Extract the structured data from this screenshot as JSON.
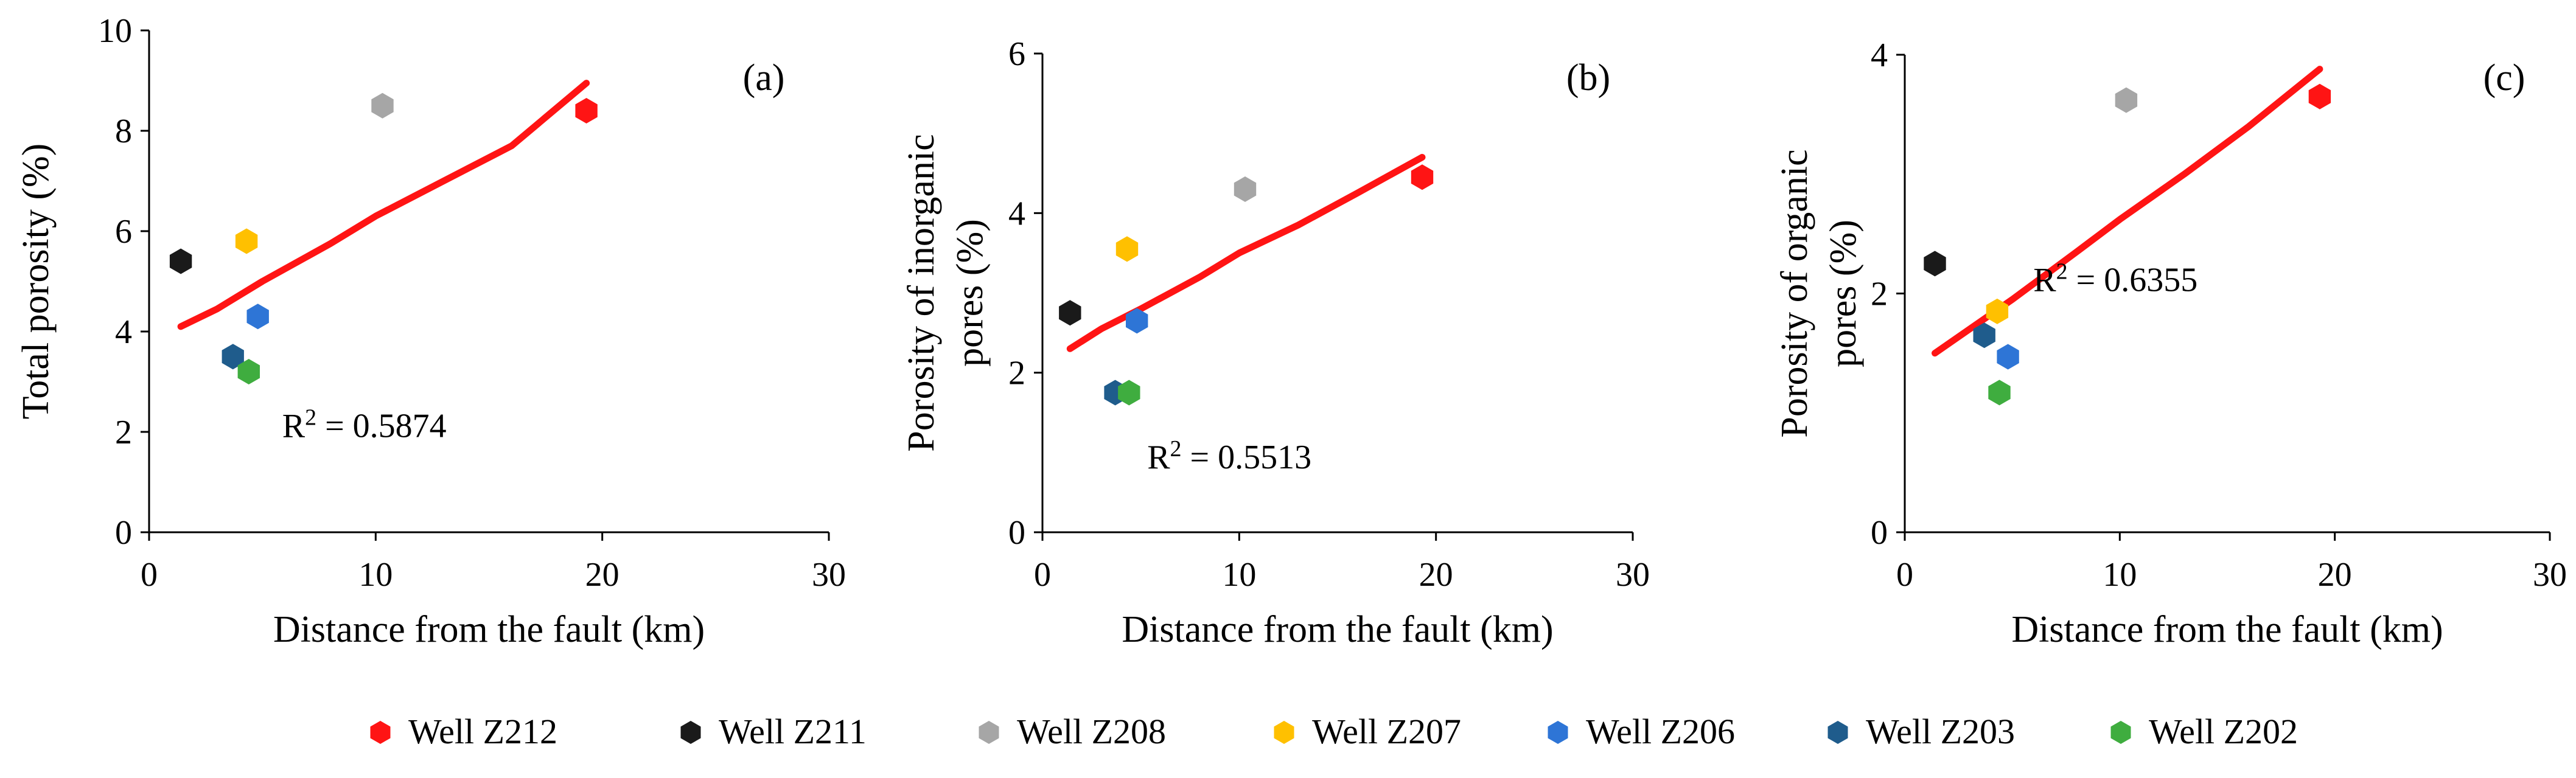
{
  "figure": {
    "x_title": "Distance from the fault (km)"
  },
  "colors": {
    "trend": "#ff1414",
    "Z212": "#ff1414",
    "Z211": "#1a1a1a",
    "Z208": "#a6a6a6",
    "Z207": "#ffc000",
    "Z206": "#2e75d6",
    "Z203": "#1f5c8c",
    "Z202": "#3fad3f"
  },
  "legend": [
    {
      "key": "Z212",
      "label": "Well Z212"
    },
    {
      "key": "Z211",
      "label": "Well Z211"
    },
    {
      "key": "Z208",
      "label": "Well Z208"
    },
    {
      "key": "Z207",
      "label": "Well Z207"
    },
    {
      "key": "Z206",
      "label": "Well Z206"
    },
    {
      "key": "Z203",
      "label": "Well Z203"
    },
    {
      "key": "Z202",
      "label": "Well Z202"
    }
  ],
  "chart_data": [
    {
      "type": "scatter",
      "panel": "(a)",
      "ylabel": "Total porosity (%)",
      "ylabel_lines": [
        "Total porosity (%)"
      ],
      "xlabel": "Distance from the fault (km)",
      "xlim": [
        0,
        30
      ],
      "ylim": [
        0,
        10
      ],
      "x_ticks": [
        0,
        10,
        20,
        30
      ],
      "y_ticks": [
        0,
        2,
        4,
        6,
        8,
        10
      ],
      "r2_prefix": "R",
      "r2_sup": "2",
      "r2_value": " = 0.5874",
      "r2_pos": [
        9.5,
        1.9
      ],
      "points": [
        {
          "well": "Z212",
          "x": 19.3,
          "y": 8.4
        },
        {
          "well": "Z211",
          "x": 1.4,
          "y": 5.4
        },
        {
          "well": "Z208",
          "x": 10.3,
          "y": 8.5
        },
        {
          "well": "Z207",
          "x": 4.3,
          "y": 5.8
        },
        {
          "well": "Z206",
          "x": 4.8,
          "y": 4.3
        },
        {
          "well": "Z203",
          "x": 3.7,
          "y": 3.5
        },
        {
          "well": "Z202",
          "x": 4.4,
          "y": 3.2
        }
      ],
      "trend": [
        [
          1.4,
          4.1
        ],
        [
          3,
          4.45
        ],
        [
          5,
          5.0
        ],
        [
          8,
          5.75
        ],
        [
          10,
          6.3
        ],
        [
          13,
          7.0
        ],
        [
          16,
          7.7
        ],
        [
          19.3,
          8.95
        ]
      ]
    },
    {
      "type": "scatter",
      "panel": "(b)",
      "ylabel": "Porosity of inorganic pores (%)",
      "ylabel_lines": [
        "Porosity of inorganic",
        "pores (%)"
      ],
      "xlabel": "Distance from the fault (km)",
      "xlim": [
        0,
        30
      ],
      "ylim": [
        0,
        6
      ],
      "x_ticks": [
        0,
        10,
        20,
        30
      ],
      "y_ticks": [
        0,
        2,
        4,
        6
      ],
      "r2_prefix": "R",
      "r2_sup": "2",
      "r2_value": " = 0.5513",
      "r2_pos": [
        9.5,
        0.8
      ],
      "points": [
        {
          "well": "Z212",
          "x": 19.3,
          "y": 4.45
        },
        {
          "well": "Z211",
          "x": 1.4,
          "y": 2.75
        },
        {
          "well": "Z208",
          "x": 10.3,
          "y": 4.3
        },
        {
          "well": "Z207",
          "x": 4.3,
          "y": 3.55
        },
        {
          "well": "Z206",
          "x": 4.8,
          "y": 2.65
        },
        {
          "well": "Z203",
          "x": 3.7,
          "y": 1.75
        },
        {
          "well": "Z202",
          "x": 4.4,
          "y": 1.75
        }
      ],
      "trend": [
        [
          1.4,
          2.3
        ],
        [
          3,
          2.55
        ],
        [
          5,
          2.8
        ],
        [
          8,
          3.2
        ],
        [
          10,
          3.5
        ],
        [
          13,
          3.85
        ],
        [
          16,
          4.25
        ],
        [
          19.3,
          4.7
        ]
      ]
    },
    {
      "type": "scatter",
      "panel": "(c)",
      "ylabel": "Porosity of organic pores (%)",
      "ylabel_lines": [
        "Porosity of organic",
        "pores (%)"
      ],
      "xlabel": "Distance from the fault (km)",
      "xlim": [
        0,
        30
      ],
      "ylim": [
        0,
        4
      ],
      "x_ticks": [
        0,
        10,
        20,
        30
      ],
      "y_ticks": [
        0,
        2,
        4
      ],
      "r2_prefix": "R",
      "r2_sup": "2",
      "r2_value": " = 0.6355",
      "r2_pos": [
        9.8,
        2.02
      ],
      "points": [
        {
          "well": "Z212",
          "x": 19.3,
          "y": 3.65
        },
        {
          "well": "Z211",
          "x": 1.4,
          "y": 2.25
        },
        {
          "well": "Z208",
          "x": 10.3,
          "y": 3.62
        },
        {
          "well": "Z207",
          "x": 4.3,
          "y": 1.85
        },
        {
          "well": "Z206",
          "x": 4.8,
          "y": 1.47
        },
        {
          "well": "Z203",
          "x": 3.7,
          "y": 1.65
        },
        {
          "well": "Z202",
          "x": 4.4,
          "y": 1.17
        }
      ],
      "trend": [
        [
          1.4,
          1.5
        ],
        [
          3,
          1.7
        ],
        [
          5,
          1.95
        ],
        [
          8,
          2.35
        ],
        [
          10,
          2.62
        ],
        [
          13,
          3.0
        ],
        [
          16,
          3.4
        ],
        [
          19.3,
          3.88
        ]
      ]
    }
  ]
}
